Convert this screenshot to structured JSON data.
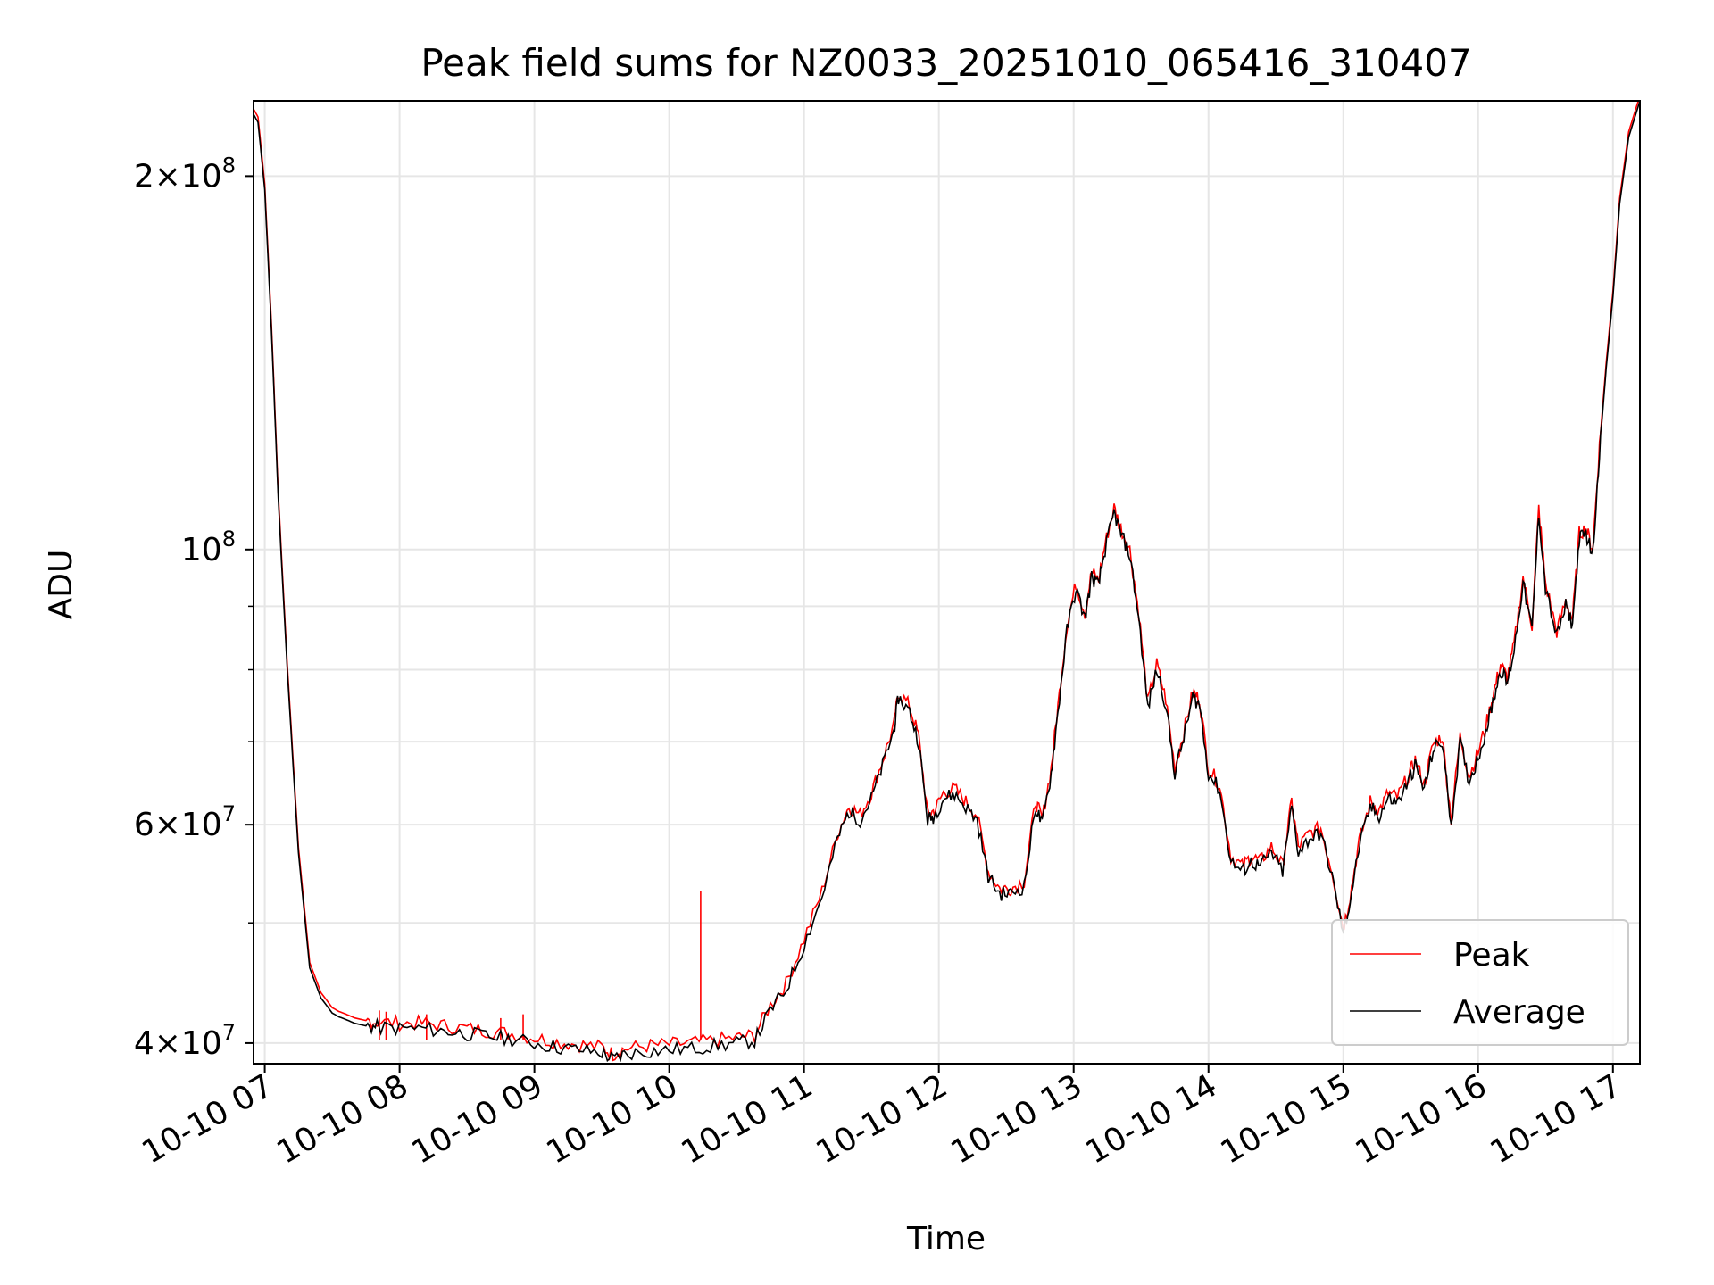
{
  "chart_data": {
    "type": "line",
    "title": "Peak field sums for NZ0033_20251010_065416_310407",
    "xlabel": "Time",
    "ylabel": "ADU",
    "yscale": "log",
    "xlim": [
      "2025-10-10 06:55",
      "2025-10-10 17:12"
    ],
    "ylim": [
      38500000,
      230000000
    ],
    "grid": true,
    "legend_position": "lower-right",
    "x_ticks": [
      "2025-10-10 07:00",
      "2025-10-10 08:00",
      "2025-10-10 09:00",
      "2025-10-10 10:00",
      "2025-10-10 11:00",
      "2025-10-10 12:00",
      "2025-10-10 13:00",
      "2025-10-10 14:00",
      "2025-10-10 15:00",
      "2025-10-10 16:00",
      "2025-10-10 17:00"
    ],
    "x_tick_labels": [
      "10-10 07",
      "10-10 08",
      "10-10 09",
      "10-10 10",
      "10-10 11",
      "10-10 12",
      "10-10 13",
      "10-10 14",
      "10-10 15",
      "10-10 16",
      "10-10 17"
    ],
    "y_ticks_major": [
      {
        "value": 40000000,
        "mantissa": "4",
        "exponent": "7"
      },
      {
        "value": 60000000,
        "mantissa": "6",
        "exponent": "7"
      },
      {
        "value": 100000000,
        "mantissa": "",
        "exponent": "8"
      },
      {
        "value": 200000000,
        "mantissa": "2",
        "exponent": "8"
      }
    ],
    "y_ticks_minor": [
      50000000,
      70000000,
      80000000,
      90000000,
      300000000
    ],
    "series": [
      {
        "name": "Average",
        "color": "#000000",
        "x": [
          "2025-10-10 06:54",
          "2025-10-10 06:57",
          "2025-10-10 07:00",
          "2025-10-10 07:03",
          "2025-10-10 07:06",
          "2025-10-10 07:10",
          "2025-10-10 07:15",
          "2025-10-10 07:20",
          "2025-10-10 07:25",
          "2025-10-10 07:30",
          "2025-10-10 07:33",
          "2025-10-10 07:36",
          "2025-10-10 07:40",
          "2025-10-10 07:45",
          "2025-10-10 07:50",
          "2025-10-10 08:00",
          "2025-10-10 08:10",
          "2025-10-10 08:20",
          "2025-10-10 08:30",
          "2025-10-10 08:40",
          "2025-10-10 08:50",
          "2025-10-10 09:00",
          "2025-10-10 09:10",
          "2025-10-10 09:20",
          "2025-10-10 09:30",
          "2025-10-10 09:35",
          "2025-10-10 09:40",
          "2025-10-10 09:50",
          "2025-10-10 10:00",
          "2025-10-10 10:10",
          "2025-10-10 10:20",
          "2025-10-10 10:30",
          "2025-10-10 10:38",
          "2025-10-10 10:45",
          "2025-10-10 10:52",
          "2025-10-10 11:00",
          "2025-10-10 11:08",
          "2025-10-10 11:15",
          "2025-10-10 11:20",
          "2025-10-10 11:25",
          "2025-10-10 11:30",
          "2025-10-10 11:35",
          "2025-10-10 11:40",
          "2025-10-10 11:42",
          "2025-10-10 11:47",
          "2025-10-10 11:51",
          "2025-10-10 11:55",
          "2025-10-10 11:58",
          "2025-10-10 12:02",
          "2025-10-10 12:07",
          "2025-10-10 12:12",
          "2025-10-10 12:17",
          "2025-10-10 12:22",
          "2025-10-10 12:27",
          "2025-10-10 12:32",
          "2025-10-10 12:38",
          "2025-10-10 12:43",
          "2025-10-10 12:46",
          "2025-10-10 12:50",
          "2025-10-10 12:53",
          "2025-10-10 12:57",
          "2025-10-10 13:01",
          "2025-10-10 13:05",
          "2025-10-10 13:08",
          "2025-10-10 13:11",
          "2025-10-10 13:14",
          "2025-10-10 13:18",
          "2025-10-10 13:21",
          "2025-10-10 13:25",
          "2025-10-10 13:29",
          "2025-10-10 13:33",
          "2025-10-10 13:37",
          "2025-10-10 13:41",
          "2025-10-10 13:45",
          "2025-10-10 13:49",
          "2025-10-10 13:53",
          "2025-10-10 13:56",
          "2025-10-10 14:00",
          "2025-10-10 14:05",
          "2025-10-10 14:10",
          "2025-10-10 14:15",
          "2025-10-10 14:19",
          "2025-10-10 14:23",
          "2025-10-10 14:28",
          "2025-10-10 14:33",
          "2025-10-10 14:37",
          "2025-10-10 14:40",
          "2025-10-10 14:45",
          "2025-10-10 14:50",
          "2025-10-10 14:55",
          "2025-10-10 15:00",
          "2025-10-10 15:03",
          "2025-10-10 15:07",
          "2025-10-10 15:12",
          "2025-10-10 15:16",
          "2025-10-10 15:20",
          "2025-10-10 15:24",
          "2025-10-10 15:29",
          "2025-10-10 15:32",
          "2025-10-10 15:36",
          "2025-10-10 15:40",
          "2025-10-10 15:44",
          "2025-10-10 15:48",
          "2025-10-10 15:52",
          "2025-10-10 15:56",
          "2025-10-10 16:00",
          "2025-10-10 16:04",
          "2025-10-10 16:07",
          "2025-10-10 16:10",
          "2025-10-10 16:13",
          "2025-10-10 16:16",
          "2025-10-10 16:20",
          "2025-10-10 16:24",
          "2025-10-10 16:27",
          "2025-10-10 16:30",
          "2025-10-10 16:35",
          "2025-10-10 16:39",
          "2025-10-10 16:42",
          "2025-10-10 16:45",
          "2025-10-10 16:48",
          "2025-10-10 16:51",
          "2025-10-10 16:54",
          "2025-10-10 16:57",
          "2025-10-10 17:00",
          "2025-10-10 17:03",
          "2025-10-10 17:07",
          "2025-10-10 17:12"
        ],
        "values": [
          226000000,
          221000000,
          195000000,
          150000000,
          110000000,
          80000000,
          57000000,
          46000000,
          43500000,
          42300000,
          42000000,
          41800000,
          41500000,
          41300000,
          41200000,
          41100000,
          41100000,
          40900000,
          40700000,
          40500000,
          40300000,
          40000000,
          39700000,
          39500000,
          39300000,
          38800000,
          39200000,
          39400000,
          39500000,
          39600000,
          39800000,
          40000000,
          40200000,
          42500000,
          44200000,
          48000000,
          52500000,
          58500000,
          61500000,
          60500000,
          63000000,
          67000000,
          71500000,
          76000000,
          74000000,
          70000000,
          60500000,
          61000000,
          63000000,
          63500000,
          62000000,
          60500000,
          54500000,
          52800000,
          52800000,
          53500000,
          62000000,
          60000000,
          66000000,
          74000000,
          86000000,
          93000000,
          88000000,
          95000000,
          93500000,
          100000000,
          107000000,
          103000000,
          99000000,
          88000000,
          74500000,
          80000000,
          75000000,
          66000000,
          70500000,
          76000000,
          75000000,
          66000000,
          64000000,
          56000000,
          55000000,
          56000000,
          55500000,
          57000000,
          55000000,
          62000000,
          57000000,
          58500000,
          59000000,
          54500000,
          49000000,
          52000000,
          57500000,
          62000000,
          61000000,
          63000000,
          62500000,
          65000000,
          67000000,
          64000000,
          69000000,
          70000000,
          60000000,
          70000000,
          65000000,
          68000000,
          72000000,
          76000000,
          80000000,
          78000000,
          83000000,
          94000000,
          86000000,
          107000000,
          93000000,
          85000000,
          90000000,
          87000000,
          102000000,
          103000000,
          99000000,
          120000000,
          140000000,
          160000000,
          190000000,
          215000000,
          230000000
        ]
      },
      {
        "name": "Peak",
        "color": "#ff0000",
        "offset_ratio": 1.01,
        "spikes": [
          {
            "x": "2025-10-10 07:51",
            "value": 42500000
          },
          {
            "x": "2025-10-10 07:54",
            "value": 42400000
          },
          {
            "x": "2025-10-10 08:12",
            "value": 42200000
          },
          {
            "x": "2025-10-10 08:45",
            "value": 41900000
          },
          {
            "x": "2025-10-10 08:55",
            "value": 42200000
          },
          {
            "x": "2025-10-10 10:14",
            "value": 53000000
          }
        ]
      }
    ]
  }
}
